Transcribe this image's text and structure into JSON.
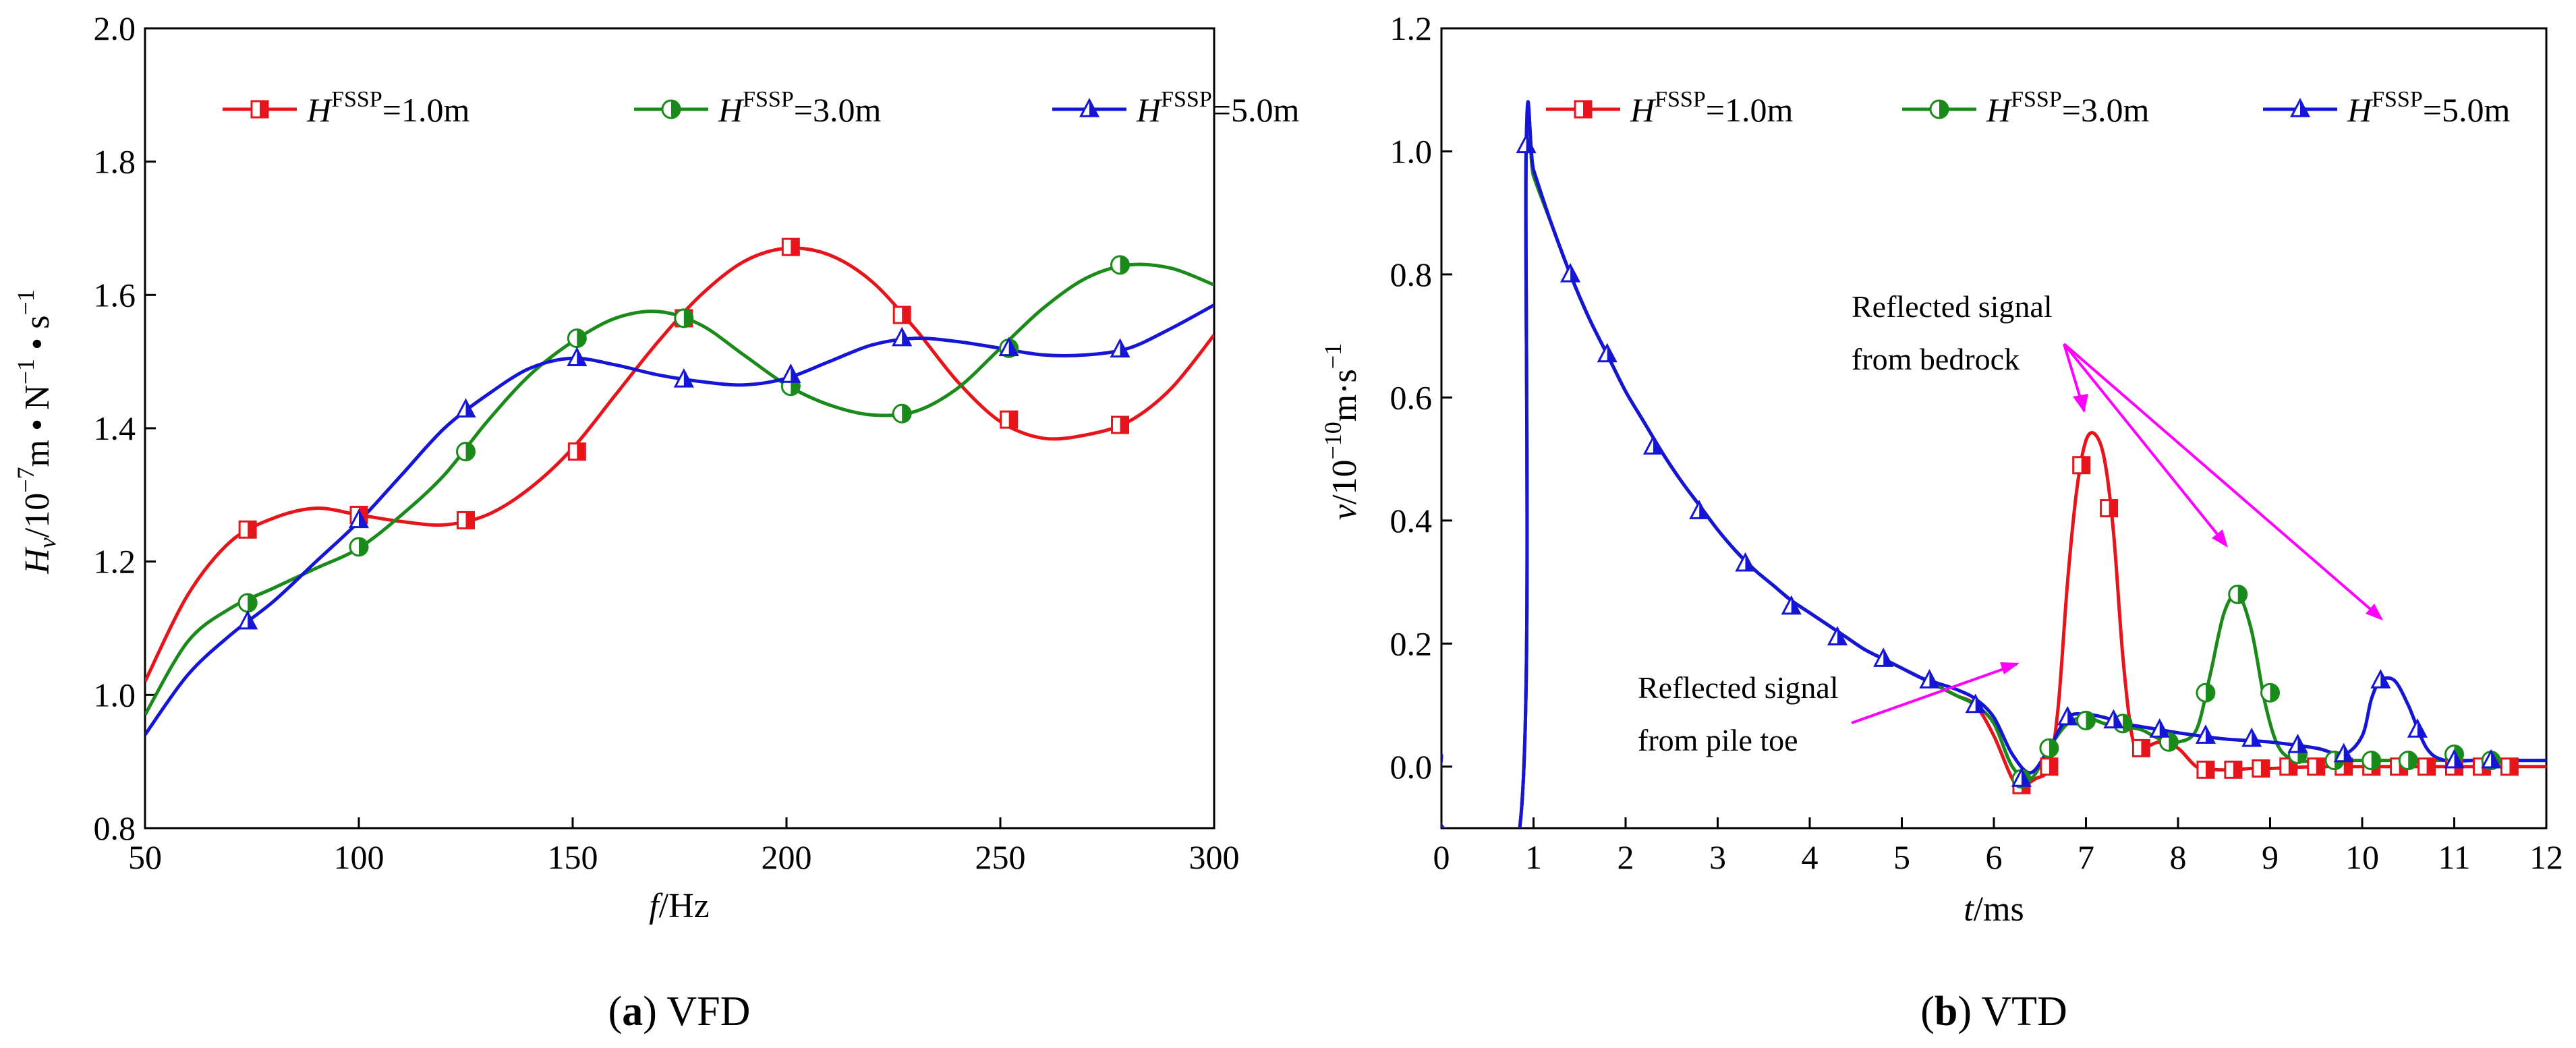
{
  "chart_data": [
    {
      "type": "line",
      "caption": {
        "tag": "a",
        "text": "VFD"
      },
      "xlabel": {
        "sym": "f",
        "unit": "/Hz"
      },
      "ylabel": {
        "sym": "H",
        "sub": "v",
        "unit_a": "/10",
        "exp_a": "−7",
        "unit_b": "m • N",
        "exp_b": "−1",
        "unit_c": " • s",
        "exp_c": "−1"
      },
      "xlim": [
        50,
        300
      ],
      "ylim": [
        0.8,
        2.0
      ],
      "xticks": [
        50,
        100,
        150,
        200,
        250,
        300
      ],
      "yticks": [
        0.8,
        1.0,
        1.2,
        1.4,
        1.6,
        1.8,
        2.0
      ],
      "tick_decimals_y": 1,
      "grid": false,
      "legend_position": "top",
      "series": [
        {
          "name": "1.0m",
          "label_sym": "H",
          "label_sup": "FSSP",
          "label_val": "=1.0m",
          "color": "#e8141b",
          "marker": "square",
          "x": [
            50,
            60,
            70,
            80,
            90,
            100,
            110,
            120,
            130,
            140,
            150,
            160,
            170,
            180,
            190,
            200,
            210,
            220,
            230,
            240,
            250,
            260,
            270,
            280,
            290,
            300
          ],
          "y": [
            1.02,
            1.15,
            1.23,
            1.265,
            1.28,
            1.27,
            1.26,
            1.255,
            1.27,
            1.31,
            1.37,
            1.45,
            1.53,
            1.6,
            1.65,
            1.67,
            1.66,
            1.62,
            1.55,
            1.47,
            1.41,
            1.385,
            1.39,
            1.41,
            1.46,
            1.54
          ],
          "markers_x": [
            74,
            100,
            125,
            151,
            176,
            201,
            227,
            252,
            278
          ],
          "markers_y": [
            1.248,
            1.27,
            1.262,
            1.365,
            1.565,
            1.672,
            1.57,
            1.413,
            1.405
          ]
        },
        {
          "name": "3.0m",
          "label_sym": "H",
          "label_sup": "FSSP",
          "label_val": "=3.0m",
          "color": "#1a8a1a",
          "marker": "circle",
          "x": [
            50,
            60,
            70,
            80,
            90,
            100,
            110,
            120,
            130,
            140,
            150,
            160,
            170,
            180,
            190,
            200,
            210,
            220,
            230,
            240,
            250,
            260,
            270,
            280,
            290,
            300
          ],
          "y": [
            0.97,
            1.08,
            1.13,
            1.16,
            1.19,
            1.22,
            1.27,
            1.33,
            1.41,
            1.48,
            1.53,
            1.565,
            1.575,
            1.555,
            1.51,
            1.465,
            1.435,
            1.42,
            1.425,
            1.46,
            1.52,
            1.58,
            1.625,
            1.645,
            1.64,
            1.615
          ],
          "markers_x": [
            74,
            100,
            125,
            151,
            176,
            201,
            227,
            252,
            278
          ],
          "markers_y": [
            1.138,
            1.222,
            1.365,
            1.535,
            1.565,
            1.463,
            1.422,
            1.52,
            1.645
          ]
        },
        {
          "name": "5.0m",
          "label_sym": "H",
          "label_sup": "FSSP",
          "label_val": "=5.0m",
          "color": "#1515d8",
          "marker": "triangle",
          "x": [
            50,
            60,
            70,
            80,
            90,
            100,
            110,
            120,
            130,
            140,
            150,
            160,
            170,
            180,
            190,
            200,
            210,
            220,
            230,
            240,
            250,
            260,
            270,
            280,
            290,
            300
          ],
          "y": [
            0.94,
            1.03,
            1.09,
            1.14,
            1.2,
            1.26,
            1.33,
            1.4,
            1.45,
            1.49,
            1.505,
            1.495,
            1.48,
            1.47,
            1.465,
            1.475,
            1.5,
            1.525,
            1.535,
            1.53,
            1.52,
            1.51,
            1.51,
            1.52,
            1.55,
            1.585
          ],
          "markers_x": [
            74,
            100,
            125,
            151,
            176,
            201,
            227,
            252,
            278
          ],
          "markers_y": [
            1.11,
            1.262,
            1.428,
            1.505,
            1.473,
            1.48,
            1.535,
            1.52,
            1.518
          ]
        }
      ]
    },
    {
      "type": "line",
      "caption": {
        "tag": "b",
        "text": "VTD"
      },
      "xlabel": {
        "sym": "t",
        "unit": "/ms"
      },
      "ylabel": {
        "sym": "v",
        "unit_a": "/10",
        "exp_a": "−10",
        "unit_b": "m·s",
        "exp_b": "−1"
      },
      "xlim": [
        0,
        12
      ],
      "ylim": [
        -0.1,
        1.2
      ],
      "xticks": [
        0,
        1,
        2,
        3,
        4,
        5,
        6,
        7,
        8,
        9,
        10,
        11,
        12
      ],
      "yticks": [
        0.0,
        0.2,
        0.4,
        0.6,
        0.8,
        1.0,
        1.2
      ],
      "tick_decimals_y": 1,
      "grid": false,
      "legend_position": "top",
      "annotations": [
        {
          "lines": [
            "Reflected signal",
            "from bedrock"
          ]
        },
        {
          "lines": [
            "Reflected signal",
            "from pile toe"
          ]
        }
      ],
      "series": [
        {
          "name": "1.0m",
          "label_sym": "H",
          "label_sup": "FSSP",
          "label_val": "=1.0m",
          "color": "#e8141b",
          "marker": "square",
          "x": [
            0,
            0.02,
            0.85,
            0.92,
            1.0,
            1.2,
            1.4,
            1.6,
            1.8,
            2.0,
            2.2,
            2.4,
            2.6,
            2.8,
            3.0,
            3.2,
            3.4,
            3.6,
            3.8,
            4.0,
            4.2,
            4.4,
            4.6,
            4.8,
            5.0,
            5.2,
            5.4,
            5.6,
            5.8,
            6.0,
            6.2,
            6.3,
            6.45,
            6.6,
            6.7,
            6.8,
            6.9,
            7.0,
            7.1,
            7.2,
            7.3,
            7.4,
            7.5,
            7.6,
            7.8,
            8.0,
            8.2,
            8.4,
            8.6,
            8.8,
            9.0,
            9.5,
            10,
            10.5,
            11,
            11.5,
            12
          ],
          "y": [
            0.02,
            -0.1,
            -0.1,
            1.0,
            0.96,
            0.88,
            0.8,
            0.73,
            0.67,
            0.61,
            0.56,
            0.51,
            0.465,
            0.425,
            0.385,
            0.35,
            0.32,
            0.295,
            0.27,
            0.25,
            0.23,
            0.21,
            0.19,
            0.175,
            0.16,
            0.145,
            0.13,
            0.115,
            0.1,
            0.05,
            -0.02,
            -0.03,
            -0.02,
            0.0,
            0.1,
            0.3,
            0.45,
            0.53,
            0.54,
            0.5,
            0.38,
            0.18,
            0.05,
            0.03,
            0.04,
            0.03,
            0.0,
            -0.005,
            -0.005,
            -0.003,
            -0.003,
            0.0,
            0.0,
            0.0,
            0.0,
            0.0,
            0.0
          ],
          "markers_x": [
            6.3,
            6.6,
            6.95,
            7.25,
            7.6,
            8.3,
            8.6,
            8.9,
            9.2,
            9.5,
            9.8,
            10.1,
            10.4,
            10.7,
            11.0,
            11.3,
            11.6
          ],
          "markers_y": [
            -0.03,
            0.0,
            0.49,
            0.42,
            0.03,
            -0.005,
            -0.005,
            -0.003,
            0.0,
            0.0,
            0.0,
            0.0,
            0.0,
            0.0,
            0.0,
            0.0,
            0.0
          ]
        },
        {
          "name": "3.0m",
          "label_sym": "H",
          "label_sup": "FSSP",
          "label_val": "=3.0m",
          "color": "#1a8a1a",
          "marker": "circle",
          "x": [
            0,
            0.02,
            0.85,
            0.92,
            1.0,
            1.2,
            1.4,
            1.6,
            1.8,
            2.0,
            2.2,
            2.4,
            2.6,
            2.8,
            3.0,
            3.2,
            3.4,
            3.6,
            3.8,
            4.0,
            4.2,
            4.4,
            4.6,
            4.8,
            5.0,
            5.2,
            5.4,
            5.6,
            5.8,
            6.0,
            6.2,
            6.4,
            6.6,
            6.8,
            7.0,
            7.2,
            7.4,
            7.6,
            7.8,
            8.0,
            8.2,
            8.35,
            8.5,
            8.65,
            8.8,
            8.95,
            9.1,
            9.3,
            9.6,
            10,
            10.5,
            11,
            11.5,
            12
          ],
          "y": [
            0.02,
            -0.1,
            -0.1,
            1.0,
            0.96,
            0.88,
            0.8,
            0.73,
            0.67,
            0.61,
            0.56,
            0.51,
            0.465,
            0.425,
            0.385,
            0.35,
            0.32,
            0.295,
            0.27,
            0.25,
            0.23,
            0.21,
            0.19,
            0.175,
            0.16,
            0.145,
            0.13,
            0.115,
            0.1,
            0.07,
            0.0,
            -0.02,
            0.03,
            0.07,
            0.08,
            0.07,
            0.065,
            0.06,
            0.045,
            0.04,
            0.06,
            0.15,
            0.25,
            0.28,
            0.22,
            0.1,
            0.03,
            0.01,
            0.01,
            0.01,
            0.01,
            0.01,
            0.01,
            0.01
          ],
          "markers_x": [
            6.3,
            6.6,
            7.0,
            7.4,
            7.9,
            8.3,
            8.65,
            9.0,
            9.3,
            9.7,
            10.1,
            10.5,
            11.0,
            11.4
          ],
          "markers_y": [
            -0.02,
            0.03,
            0.075,
            0.07,
            0.04,
            0.12,
            0.28,
            0.12,
            0.02,
            0.01,
            0.01,
            0.01,
            0.02,
            0.01
          ]
        },
        {
          "name": "5.0m",
          "label_sym": "H",
          "label_sup": "FSSP",
          "label_val": "=5.0m",
          "color": "#1515d8",
          "marker": "triangle",
          "x": [
            0,
            0.02,
            0.85,
            0.92,
            1.0,
            1.2,
            1.4,
            1.6,
            1.8,
            2.0,
            2.2,
            2.4,
            2.6,
            2.8,
            3.0,
            3.2,
            3.4,
            3.6,
            3.8,
            4.0,
            4.2,
            4.4,
            4.6,
            4.8,
            5.0,
            5.2,
            5.4,
            5.6,
            5.8,
            6.0,
            6.2,
            6.4,
            6.6,
            6.8,
            7.0,
            7.2,
            7.4,
            7.6,
            7.8,
            8.0,
            8.5,
            9.0,
            9.5,
            9.8,
            10.0,
            10.1,
            10.2,
            10.35,
            10.5,
            10.7,
            10.9,
            11.2,
            11.5,
            12
          ],
          "y": [
            0.02,
            -0.1,
            -0.1,
            1.01,
            0.97,
            0.88,
            0.8,
            0.73,
            0.67,
            0.61,
            0.56,
            0.51,
            0.465,
            0.425,
            0.385,
            0.35,
            0.32,
            0.295,
            0.27,
            0.25,
            0.23,
            0.21,
            0.19,
            0.175,
            0.16,
            0.145,
            0.135,
            0.125,
            0.11,
            0.08,
            0.02,
            -0.01,
            0.03,
            0.08,
            0.085,
            0.08,
            0.07,
            0.065,
            0.06,
            0.055,
            0.045,
            0.04,
            0.03,
            0.02,
            0.05,
            0.11,
            0.14,
            0.14,
            0.1,
            0.03,
            0.01,
            0.01,
            0.01,
            0.01
          ],
          "markers_x": [
            0.92,
            1.4,
            1.8,
            2.3,
            2.8,
            3.3,
            3.8,
            4.3,
            4.8,
            5.3,
            5.8,
            6.3,
            6.8,
            7.3,
            7.8,
            8.3,
            8.8,
            9.3,
            9.8,
            10.2,
            10.6,
            11.0,
            11.4
          ],
          "markers_y": [
            1.01,
            0.8,
            0.67,
            0.52,
            0.415,
            0.33,
            0.26,
            0.21,
            0.175,
            0.14,
            0.1,
            -0.02,
            0.08,
            0.075,
            0.06,
            0.05,
            0.045,
            0.035,
            0.02,
            0.14,
            0.06,
            0.01,
            0.01
          ]
        }
      ]
    }
  ]
}
